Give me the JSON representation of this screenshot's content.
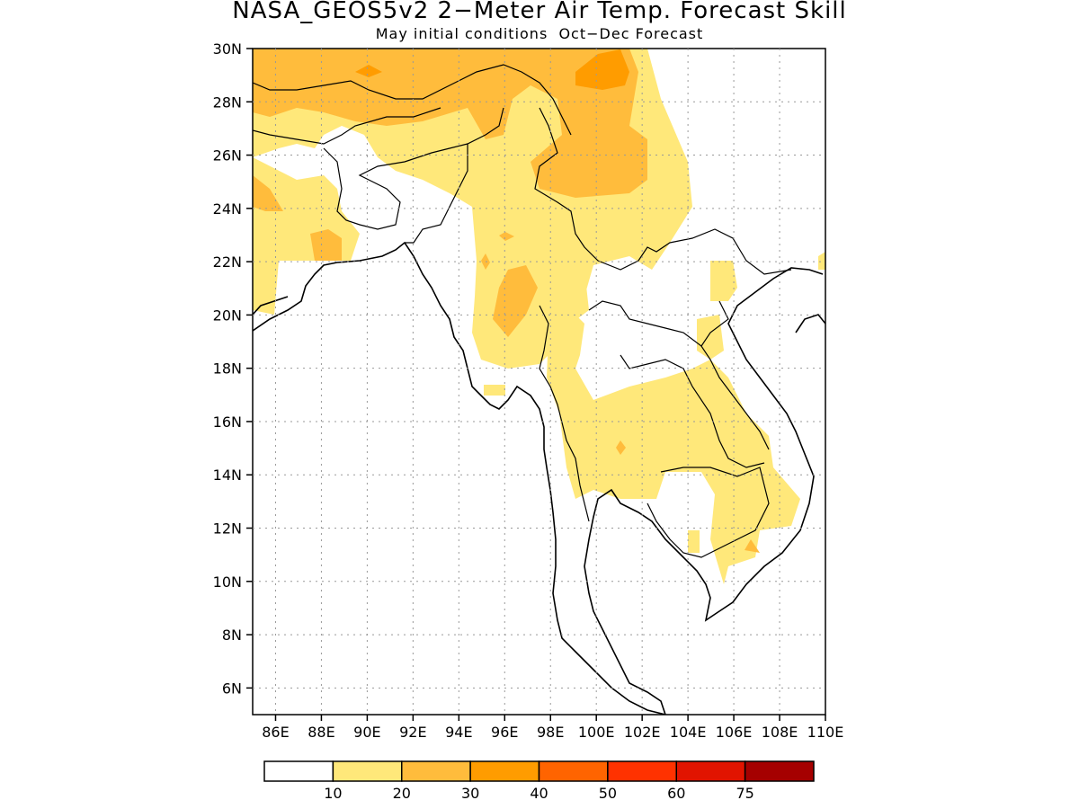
{
  "title": "NASA_GEOS5v2 2−Meter Air Temp. Forecast Skill",
  "subtitle": "May initial conditions  Oct−Dec Forecast",
  "lat_labels": [
    "30N",
    "28N",
    "26N",
    "24N",
    "22N",
    "20N",
    "18N",
    "16N",
    "14N",
    "12N",
    "10N",
    "8N",
    "6N"
  ],
  "lon_labels": [
    "86E",
    "88E",
    "90E",
    "92E",
    "94E",
    "96E",
    "98E",
    "100E",
    "102E",
    "104E",
    "106E",
    "108E",
    "110E"
  ],
  "map_extent": {
    "lon": [
      85,
      110
    ],
    "lat": [
      5,
      30
    ]
  },
  "legend": {
    "colors": [
      "#ffffff",
      "#ffe87a",
      "#ffbc3c",
      "#ff9c00",
      "#ff6400",
      "#ff3200",
      "#e11400",
      "#a50000"
    ],
    "labels": [
      "10",
      "20",
      "30",
      "40",
      "50",
      "60",
      "75"
    ]
  },
  "palette": {
    "light_yellow": "#ffe87a",
    "orange": "#ffbc3c",
    "dark_orange": "#ff9c00"
  }
}
